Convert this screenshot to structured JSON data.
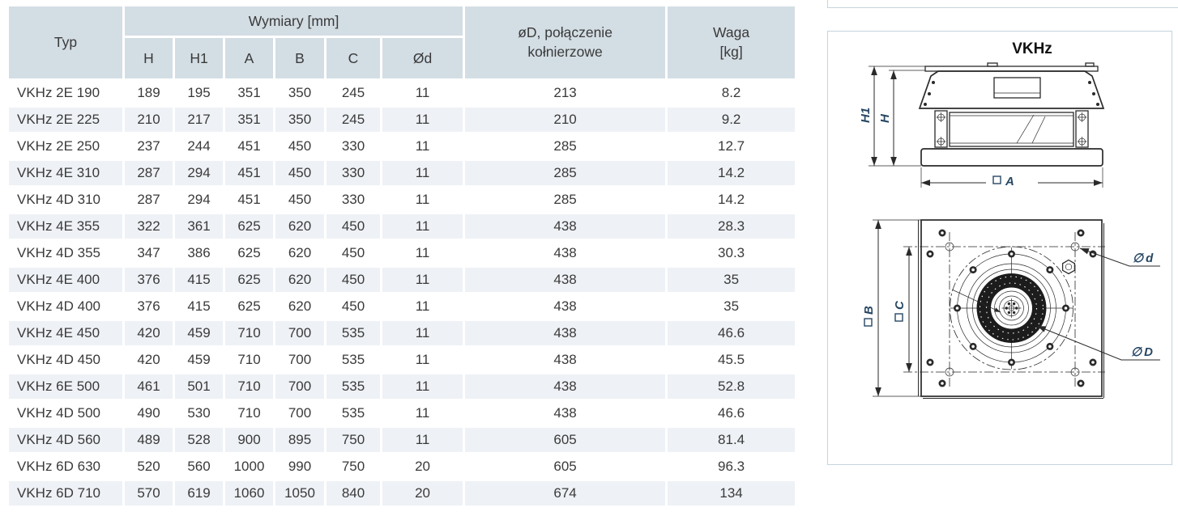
{
  "colors": {
    "header_bg": "#d3dde4",
    "row_shade": "#eef1f5",
    "row_white": "#ffffff",
    "text": "#3a3a3a",
    "panel_border": "#c6d3dc",
    "drawing_line": "#2a2a2a",
    "drawing_label": "#274763",
    "page_bg": "#ffffff"
  },
  "table": {
    "header": {
      "typ": "Typ",
      "wymiary": "Wymiary [mm]",
      "dims": [
        "H",
        "H1",
        "A",
        "B",
        "C",
        "Ød"
      ],
      "flange_line1": "øD, połączenie",
      "flange_line2": "kołnierzowe",
      "waga_line1": "Waga",
      "waga_line2": "[kg]"
    },
    "rows": [
      [
        "VKHz 2E 190",
        "189",
        "195",
        "351",
        "350",
        "245",
        "11",
        "213",
        "8.2"
      ],
      [
        "VKHz 2E 225",
        "210",
        "217",
        "351",
        "350",
        "245",
        "11",
        "210",
        "9.2"
      ],
      [
        "VKHz 2E 250",
        "237",
        "244",
        "451",
        "450",
        "330",
        "11",
        "285",
        "12.7"
      ],
      [
        "VKHz 4E 310",
        "287",
        "294",
        "451",
        "450",
        "330",
        "11",
        "285",
        "14.2"
      ],
      [
        "VKHz 4D 310",
        "287",
        "294",
        "451",
        "450",
        "330",
        "11",
        "285",
        "14.2"
      ],
      [
        "VKHz 4E 355",
        "322",
        "361",
        "625",
        "620",
        "450",
        "11",
        "438",
        "28.3"
      ],
      [
        "VKHz 4D 355",
        "347",
        "386",
        "625",
        "620",
        "450",
        "11",
        "438",
        "30.3"
      ],
      [
        "VKHz 4E 400",
        "376",
        "415",
        "625",
        "620",
        "450",
        "11",
        "438",
        "35"
      ],
      [
        "VKHz 4D 400",
        "376",
        "415",
        "625",
        "620",
        "450",
        "11",
        "438",
        "35"
      ],
      [
        "VKHz 4E 450",
        "420",
        "459",
        "710",
        "700",
        "535",
        "11",
        "438",
        "46.6"
      ],
      [
        "VKHz 4D 450",
        "420",
        "459",
        "710",
        "700",
        "535",
        "11",
        "438",
        "45.5"
      ],
      [
        "VKHz 6E 500",
        "461",
        "501",
        "710",
        "700",
        "535",
        "11",
        "438",
        "52.8"
      ],
      [
        "VKHz 4D 500",
        "490",
        "530",
        "710",
        "700",
        "535",
        "11",
        "438",
        "46.6"
      ],
      [
        "VKHz 4D 560",
        "489",
        "528",
        "900",
        "895",
        "750",
        "11",
        "605",
        "81.4"
      ],
      [
        "VKHz 6D 630",
        "520",
        "560",
        "1000",
        "990",
        "750",
        "20",
        "605",
        "96.3"
      ],
      [
        "VKHz 6D 710",
        "570",
        "619",
        "1060",
        "1050",
        "840",
        "20",
        "674",
        "134"
      ]
    ]
  },
  "drawing": {
    "title": "VKHz",
    "side_view": {
      "dim_h1": "H1",
      "dim_h": "H",
      "dim_a": "A",
      "square_symbol": "□"
    },
    "top_view": {
      "dim_b": "B",
      "dim_c": "C",
      "dim_d_small": "d",
      "dim_d_large": "D",
      "phi_symbol": "∅"
    }
  }
}
